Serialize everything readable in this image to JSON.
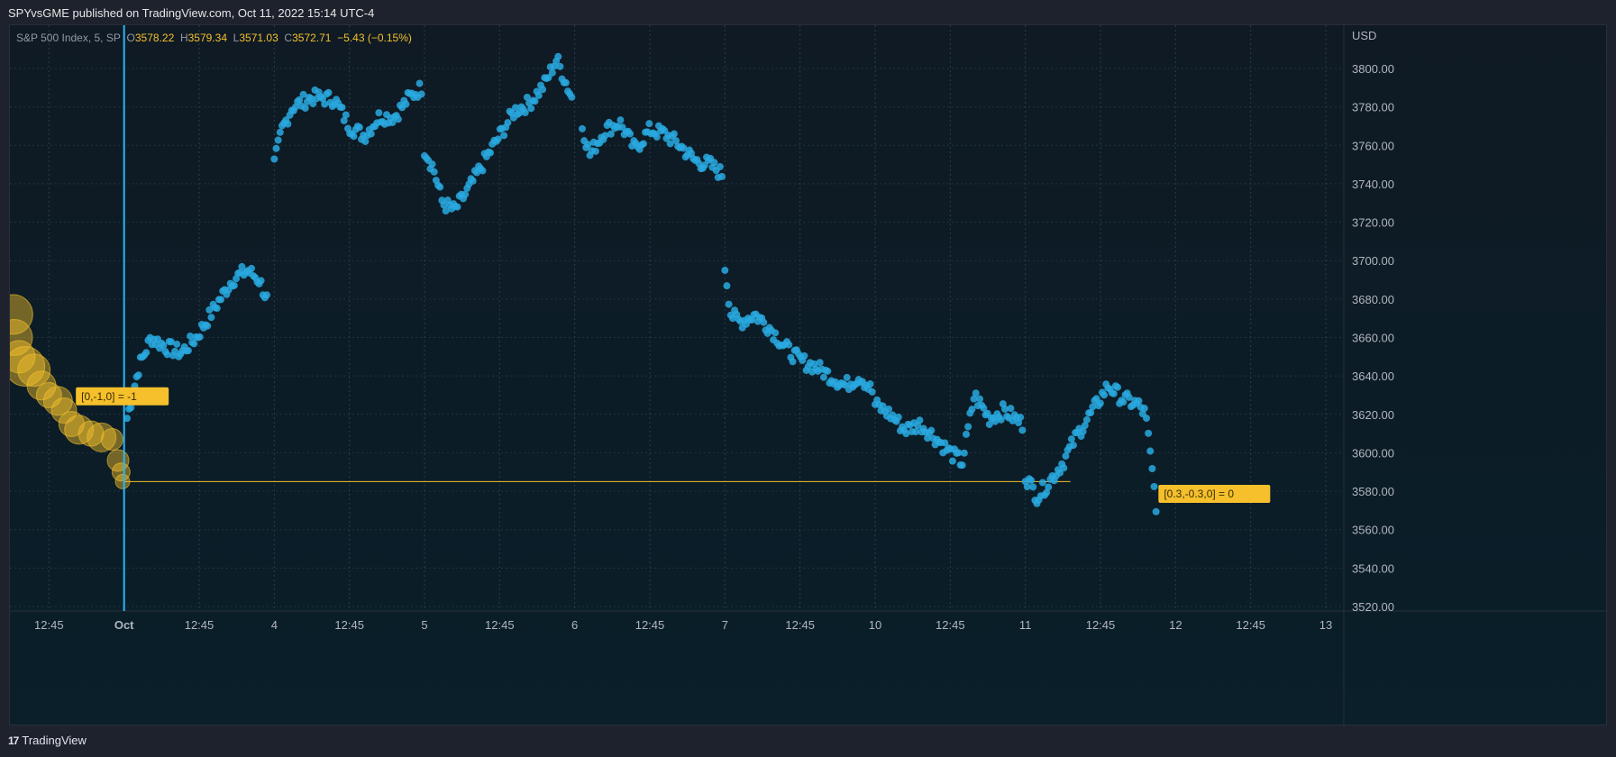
{
  "header": {
    "published": "SPYvsGME published on TradingView.com, Oct 11, 2022 15:14 UTC-4"
  },
  "legend": {
    "symbol": "S&P 500 Index, 5, SP",
    "o_label": "O",
    "o_value": "3578.22",
    "h_label": "H",
    "h_value": "3579.34",
    "l_label": "L",
    "l_value": "3571.03",
    "c_label": "C",
    "c_value": "3572.71",
    "change": "−5.43 (−0.15%)"
  },
  "footer": {
    "logo": "17",
    "brand": "TradingView"
  },
  "colors": {
    "scatter": "#29a9e0",
    "bubbles": "#f5c02c",
    "cursor_line": "#29b6f6",
    "level_line": "#f5c02c",
    "background": "#0d1b26",
    "page": "#1e222d"
  },
  "chart_data": {
    "type": "scatter",
    "currency": "USD",
    "ylim": [
      3520,
      3810
    ],
    "y_ticks": [
      "3520.00",
      "3540.00",
      "3560.00",
      "3580.00",
      "3600.00",
      "3620.00",
      "3640.00",
      "3660.00",
      "3680.00",
      "3700.00",
      "3720.00",
      "3740.00",
      "3760.00",
      "3780.00",
      "3800.00"
    ],
    "x_ticks": [
      "12:45",
      "Oct",
      "12:45",
      "4",
      "12:45",
      "5",
      "12:45",
      "6",
      "12:45",
      "7",
      "12:45",
      "10",
      "12:45",
      "11",
      "12:45",
      "12",
      "12:45",
      "13"
    ],
    "x_tick_values": [
      -0.5,
      0,
      0.5,
      1,
      1.5,
      2,
      2.5,
      3,
      3.5,
      4,
      4.5,
      5,
      5.5,
      6,
      6.5,
      7,
      7.5,
      8
    ],
    "xlim": [
      -0.76,
      8.12
    ],
    "cursor_x": 0,
    "level_line": {
      "y": 3585,
      "x_start": 0,
      "x_end": 6.3
    },
    "annotations": [
      {
        "text": "[0,-1,0] = -1",
        "x": 0,
        "y": 3620
      },
      {
        "text": "[0.3,-0.3,0] = 0",
        "x": 6.85,
        "y": 3573
      }
    ],
    "bubble_series": {
      "name": "",
      "points": [
        [
          -0.74,
          3672,
          22
        ],
        [
          -0.73,
          3660,
          20
        ],
        [
          -0.7,
          3650,
          18
        ],
        [
          -0.66,
          3645,
          22
        ],
        [
          -0.6,
          3643,
          18
        ],
        [
          -0.55,
          3635,
          16
        ],
        [
          -0.5,
          3630,
          14
        ],
        [
          -0.44,
          3627,
          16
        ],
        [
          -0.4,
          3622,
          14
        ],
        [
          -0.35,
          3615,
          14
        ],
        [
          -0.3,
          3612,
          16
        ],
        [
          -0.22,
          3610,
          14
        ],
        [
          -0.15,
          3608,
          16
        ],
        [
          -0.08,
          3607,
          12
        ],
        [
          -0.04,
          3596,
          12
        ],
        [
          -0.02,
          3590,
          10
        ],
        [
          -0.01,
          3585,
          8
        ]
      ]
    },
    "scatter_series": {
      "name": "",
      "segments": [
        {
          "x0": 0.02,
          "x1": 0.95,
          "anchors": [
            [
              0.02,
              3618
            ],
            [
              0.1,
              3645
            ],
            [
              0.18,
              3660
            ],
            [
              0.28,
              3655
            ],
            [
              0.38,
              3652
            ],
            [
              0.48,
              3660
            ],
            [
              0.6,
              3675
            ],
            [
              0.72,
              3690
            ],
            [
              0.82,
              3695
            ],
            [
              0.9,
              3690
            ],
            [
              0.95,
              3680
            ]
          ]
        },
        {
          "x0": 1.0,
          "x1": 1.98,
          "anchors": [
            [
              1.0,
              3750
            ],
            [
              1.05,
              3768
            ],
            [
              1.12,
              3780
            ],
            [
              1.25,
              3785
            ],
            [
              1.4,
              3784
            ],
            [
              1.5,
              3770
            ],
            [
              1.6,
              3765
            ],
            [
              1.7,
              3775
            ],
            [
              1.8,
              3775
            ],
            [
              1.9,
              3785
            ],
            [
              1.98,
              3790
            ]
          ]
        },
        {
          "x0": 2.0,
          "x1": 2.98,
          "anchors": [
            [
              2.0,
              3758
            ],
            [
              2.06,
              3748
            ],
            [
              2.12,
              3730
            ],
            [
              2.2,
              3726
            ],
            [
              2.3,
              3738
            ],
            [
              2.4,
              3752
            ],
            [
              2.5,
              3765
            ],
            [
              2.6,
              3778
            ],
            [
              2.7,
              3782
            ],
            [
              2.8,
              3792
            ],
            [
              2.88,
              3805
            ],
            [
              2.98,
              3785
            ]
          ]
        },
        {
          "x0": 3.05,
          "x1": 3.98,
          "anchors": [
            [
              3.05,
              3770
            ],
            [
              3.1,
              3755
            ],
            [
              3.2,
              3768
            ],
            [
              3.3,
              3772
            ],
            [
              3.4,
              3758
            ],
            [
              3.5,
              3768
            ],
            [
              3.6,
              3766
            ],
            [
              3.7,
              3760
            ],
            [
              3.8,
              3752
            ],
            [
              3.9,
              3750
            ],
            [
              3.98,
              3745
            ]
          ]
        },
        {
          "x0": 4.0,
          "x1": 4.98,
          "anchors": [
            [
              4.0,
              3697
            ],
            [
              4.04,
              3672
            ],
            [
              4.1,
              3668
            ],
            [
              4.2,
              3672
            ],
            [
              4.3,
              3665
            ],
            [
              4.4,
              3655
            ],
            [
              4.5,
              3648
            ],
            [
              4.6,
              3645
            ],
            [
              4.7,
              3640
            ],
            [
              4.8,
              3635
            ],
            [
              4.9,
              3640
            ],
            [
              4.98,
              3632
            ]
          ]
        },
        {
          "x0": 5.0,
          "x1": 5.98,
          "anchors": [
            [
              5.0,
              3625
            ],
            [
              5.1,
              3620
            ],
            [
              5.2,
              3612
            ],
            [
              5.3,
              3615
            ],
            [
              5.4,
              3608
            ],
            [
              5.5,
              3600
            ],
            [
              5.58,
              3595
            ],
            [
              5.66,
              3630
            ],
            [
              5.76,
              3618
            ],
            [
              5.86,
              3622
            ],
            [
              5.98,
              3615
            ]
          ]
        },
        {
          "x0": 6.0,
          "x1": 6.87,
          "anchors": [
            [
              6.0,
              3588
            ],
            [
              6.08,
              3577
            ],
            [
              6.16,
              3585
            ],
            [
              6.25,
              3595
            ],
            [
              6.35,
              3610
            ],
            [
              6.45,
              3622
            ],
            [
              6.55,
              3635
            ],
            [
              6.65,
              3628
            ],
            [
              6.75,
              3625
            ],
            [
              6.8,
              3620
            ],
            [
              6.83,
              3600
            ],
            [
              6.87,
              3573
            ]
          ]
        }
      ]
    }
  }
}
